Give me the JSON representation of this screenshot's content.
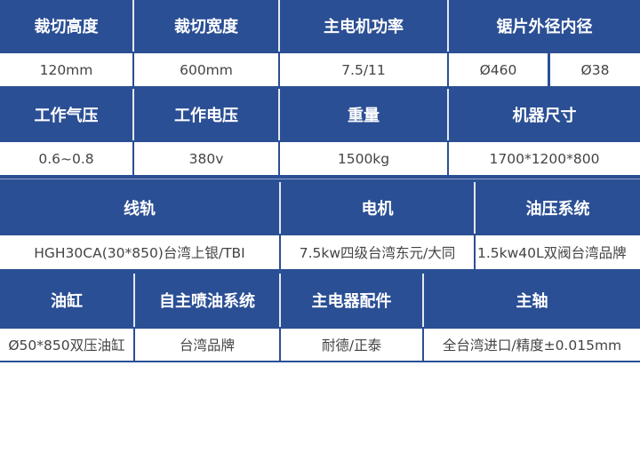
{
  "colors": {
    "header_bg": "#2b4f94",
    "header_text": "#ffffff",
    "value_bg": "#ffffff",
    "value_text": "#444444"
  },
  "rows": [
    {
      "headers": [
        "裁切高度",
        "裁切宽度",
        "主电机功率",
        "锯片外径内径"
      ],
      "values": [
        "120mm",
        "600mm",
        "7.5/11",
        "Ø460",
        "Ø38"
      ]
    },
    {
      "headers": [
        "工作气压",
        "工作电压",
        "重量",
        "机器尺寸"
      ],
      "values": [
        "0.6~0.8",
        "380v",
        "1500kg",
        "1700*1200*800"
      ]
    },
    {
      "headers": [
        "线轨",
        "电机",
        "油压系统"
      ],
      "values": [
        "HGH30CA(30*850)台湾上银/TBI",
        "7.5kw四级台湾东元/大同",
        "1.5kw40L双阀台湾品牌"
      ]
    },
    {
      "headers": [
        "油缸",
        "自主喷油系统",
        "主电器配件",
        "主轴"
      ],
      "values": [
        "Ø50*850双压油缸",
        "台湾品牌",
        "耐德/正泰",
        "全台湾进口/精度±0.015mm"
      ]
    }
  ]
}
